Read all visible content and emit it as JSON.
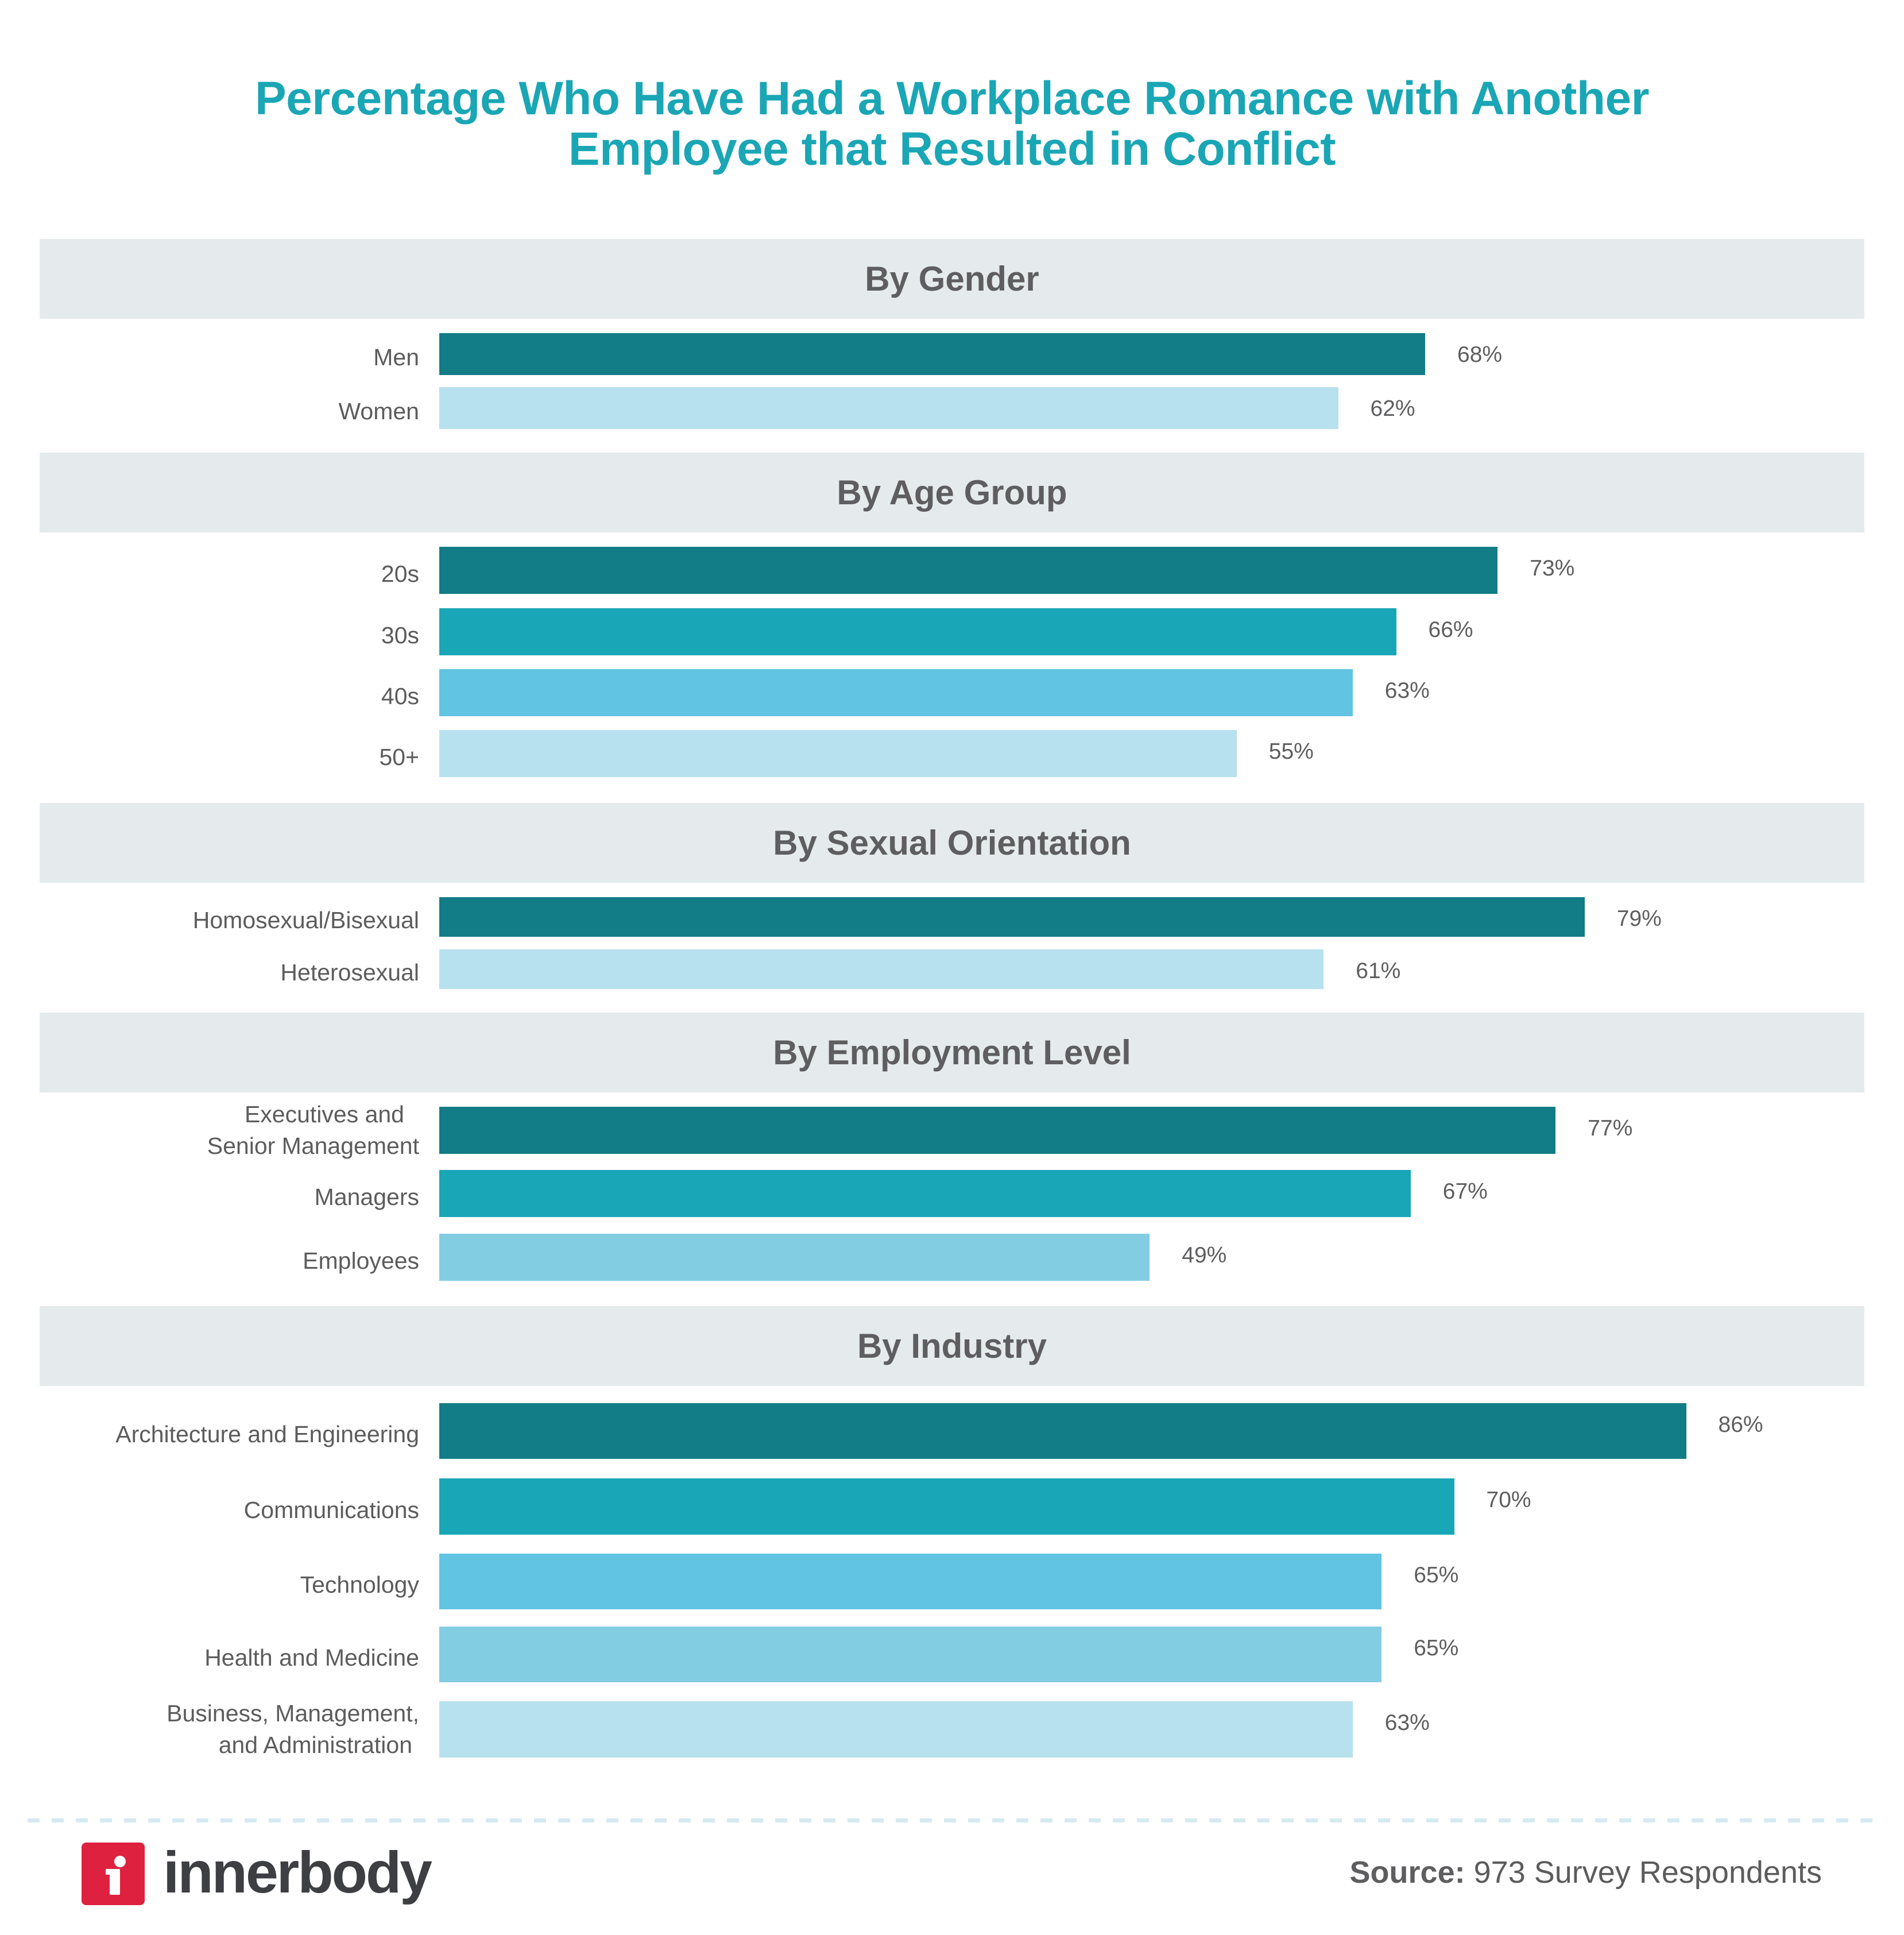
{
  "title": {
    "line1": "Percentage Who Have Had a Workplace Romance with Another",
    "line2": "Employee that Resulted in Conflict"
  },
  "colors": {
    "title": "#1aa6b5",
    "header_bg": "#e5eaec",
    "shade1": "#127c87",
    "shade2": "#19a6b6",
    "shade3": "#61c4e2",
    "shade4": "#83cde3",
    "shade5": "#b7e1ee",
    "logo_red": "#df2140"
  },
  "sections": [
    {
      "title": "By Gender",
      "rows": [
        {
          "label": "Men",
          "value": 68,
          "value_label": "68%"
        },
        {
          "label": "Women",
          "value": 62,
          "value_label": "62%"
        }
      ]
    },
    {
      "title": "By Age Group",
      "rows": [
        {
          "label": "20s",
          "value": 73,
          "value_label": "73%"
        },
        {
          "label": "30s",
          "value": 66,
          "value_label": "66%"
        },
        {
          "label": "40s",
          "value": 63,
          "value_label": "63%"
        },
        {
          "label": "50+",
          "value": 55,
          "value_label": "55%"
        }
      ]
    },
    {
      "title": "By Sexual Orientation",
      "rows": [
        {
          "label": "Homosexual/Bisexual",
          "value": 79,
          "value_label": "79%"
        },
        {
          "label": "Heterosexual",
          "value": 61,
          "value_label": "61%"
        }
      ]
    },
    {
      "title": "By Employment Level",
      "rows": [
        {
          "label_line1": "Executives and",
          "label_line2": "Senior Management",
          "value": 77,
          "value_label": "77%"
        },
        {
          "label": "Managers",
          "value": 67,
          "value_label": "67%"
        },
        {
          "label": "Employees",
          "value": 49,
          "value_label": "49%"
        }
      ]
    },
    {
      "title": "By Industry",
      "rows": [
        {
          "label": "Architecture and Engineering",
          "value": 86,
          "value_label": "86%"
        },
        {
          "label": "Communications",
          "value": 70,
          "value_label": "70%"
        },
        {
          "label": "Technology",
          "value": 65,
          "value_label": "65%"
        },
        {
          "label": "Health and Medicine",
          "value": 65,
          "value_label": "65%"
        },
        {
          "label_line1": "Business, Management,",
          "label_line2": "and Administration",
          "value": 63,
          "value_label": "63%"
        }
      ]
    }
  ],
  "footer": {
    "logo_glyph": "i",
    "logo_text": "innerbody",
    "source_bold": "Source:",
    "source_text": " 973 Survey Respondents"
  },
  "chart_data": {
    "type": "bar",
    "orientation": "horizontal",
    "title": "Percentage Who Have Had a Workplace Romance with Another Employee that Resulted in Conflict",
    "xlabel": "",
    "ylabel": "",
    "xlim": [
      0,
      100
    ],
    "grid": false,
    "legend": null,
    "unit": "%",
    "groups": [
      {
        "name": "By Gender",
        "categories": [
          "Men",
          "Women"
        ],
        "values": [
          68,
          62
        ]
      },
      {
        "name": "By Age Group",
        "categories": [
          "20s",
          "30s",
          "40s",
          "50+"
        ],
        "values": [
          73,
          66,
          63,
          55
        ]
      },
      {
        "name": "By Sexual Orientation",
        "categories": [
          "Homosexual/Bisexual",
          "Heterosexual"
        ],
        "values": [
          79,
          61
        ]
      },
      {
        "name": "By Employment Level",
        "categories": [
          "Executives and Senior Management",
          "Managers",
          "Employees"
        ],
        "values": [
          77,
          67,
          49
        ]
      },
      {
        "name": "By Industry",
        "categories": [
          "Architecture and Engineering",
          "Communications",
          "Technology",
          "Health and Medicine",
          "Business, Management, and Administration"
        ],
        "values": [
          86,
          70,
          65,
          65,
          63
        ]
      }
    ],
    "source": "Source: 973 Survey Respondents"
  }
}
